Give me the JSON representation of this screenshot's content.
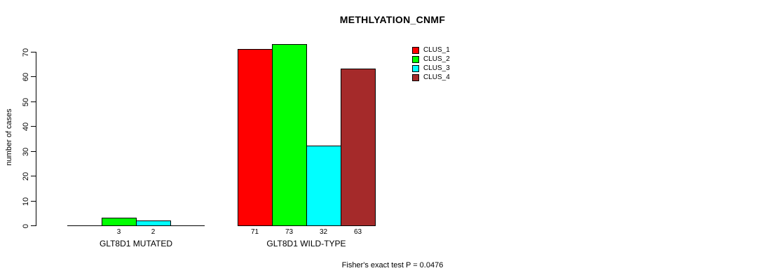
{
  "title": "METHLYATION_CNMF",
  "footer": "Fisher's exact test P = 0.0476",
  "chart_data": {
    "type": "bar",
    "title": "METHLYATION_CNMF",
    "xlabel": "",
    "ylabel": "number of cases",
    "ylim": [
      0,
      70
    ],
    "yticks": [
      0,
      10,
      20,
      30,
      40,
      50,
      60,
      70
    ],
    "grid": false,
    "legend_position": "top-right",
    "annotation": "Fisher's exact test P = 0.0476",
    "series": [
      {
        "name": "CLUS_1",
        "color": "#FF0000"
      },
      {
        "name": "CLUS_2",
        "color": "#00FF00"
      },
      {
        "name": "CLUS_3",
        "color": "#00FFFF"
      },
      {
        "name": "CLUS_4",
        "color": "#A52A2A"
      }
    ],
    "groups": [
      {
        "label": "GLT8D1 MUTATED",
        "values": [
          0,
          3,
          2,
          0
        ],
        "bar_labels": [
          "",
          "3",
          "2",
          ""
        ]
      },
      {
        "label": "GLT8D1 WILD-TYPE",
        "values": [
          71,
          73,
          32,
          63
        ],
        "bar_labels": [
          "71",
          "73",
          "32",
          "63"
        ]
      }
    ]
  }
}
